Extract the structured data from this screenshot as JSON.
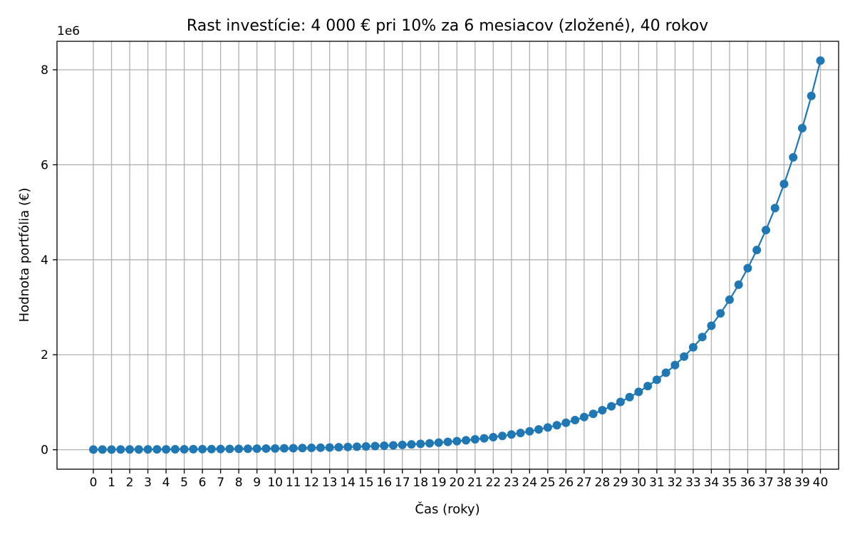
{
  "chart_data": {
    "type": "line",
    "title": "Rast investície: 4 000 € pri 10% za 6 mesiacov (zložené), 40 rokov",
    "xlabel": "Čas (roky)",
    "ylabel": "Hodnota portfólia (€)",
    "y_offset_label": "1e6",
    "xlim": [
      -2,
      41
    ],
    "ylim": [
      -410000,
      8600000
    ],
    "x_ticks": [
      "0",
      "1",
      "2",
      "3",
      "4",
      "5",
      "6",
      "7",
      "8",
      "9",
      "10",
      "11",
      "12",
      "13",
      "14",
      "15",
      "16",
      "17",
      "18",
      "19",
      "20",
      "21",
      "22",
      "23",
      "24",
      "25",
      "26",
      "27",
      "28",
      "29",
      "30",
      "31",
      "32",
      "33",
      "34",
      "35",
      "36",
      "37",
      "38",
      "39",
      "40"
    ],
    "y_ticks": [
      {
        "value": 0,
        "label": "0"
      },
      {
        "value": 2000000,
        "label": "2"
      },
      {
        "value": 4000000,
        "label": "4"
      },
      {
        "value": 6000000,
        "label": "6"
      },
      {
        "value": 8000000,
        "label": "8"
      }
    ],
    "grid": true,
    "marker": "circle",
    "line_color": "#1f77b4",
    "series": [
      {
        "x": [
          0,
          0.5,
          1,
          1.5,
          2,
          2.5,
          3,
          3.5,
          4,
          4.5,
          5,
          5.5,
          6,
          6.5,
          7,
          7.5,
          8,
          8.5,
          9,
          9.5,
          10,
          10.5,
          11,
          11.5,
          12,
          12.5,
          13,
          13.5,
          14,
          14.5,
          15,
          15.5,
          16,
          16.5,
          17,
          17.5,
          18,
          18.5,
          19,
          19.5,
          20,
          20.5,
          21,
          21.5,
          22,
          22.5,
          23,
          23.5,
          24,
          24.5,
          25,
          25.5,
          26,
          26.5,
          27,
          27.5,
          28,
          28.5,
          29,
          29.5,
          30,
          30.5,
          31,
          31.5,
          32,
          32.5,
          33,
          33.5,
          34,
          34.5,
          35,
          35.5,
          36,
          36.5,
          37,
          37.5,
          38,
          38.5,
          39,
          39.5,
          40
        ],
        "y": [
          4000,
          4400,
          4840,
          5324,
          5856,
          6442,
          7086,
          7795,
          8574,
          9432,
          10375,
          11412,
          12554,
          13809,
          15190,
          16709,
          18380,
          20218,
          22240,
          24464,
          26910,
          29601,
          32561,
          35817,
          39399,
          43339,
          47673,
          52440,
          57684,
          63453,
          69798,
          76778,
          84456,
          92901,
          102191,
          112410,
          123652,
          136017,
          149618,
          164580,
          181038,
          199142,
          219056,
          240962,
          265058,
          291564,
          320720,
          352792,
          388071,
          426878,
          469566,
          516523,
          568175,
          624993,
          687492,
          756241,
          831865,
          915052,
          1006557,
          1107213,
          1217934,
          1339727,
          1473700,
          1621070,
          1783177,
          1961494,
          2157644,
          2373408,
          2610749,
          2871824,
          3159006,
          3474907,
          3822398,
          4204637,
          4625101,
          5087611,
          5596372,
          6156009,
          6771610,
          7448771,
          8193648
        ]
      }
    ]
  }
}
